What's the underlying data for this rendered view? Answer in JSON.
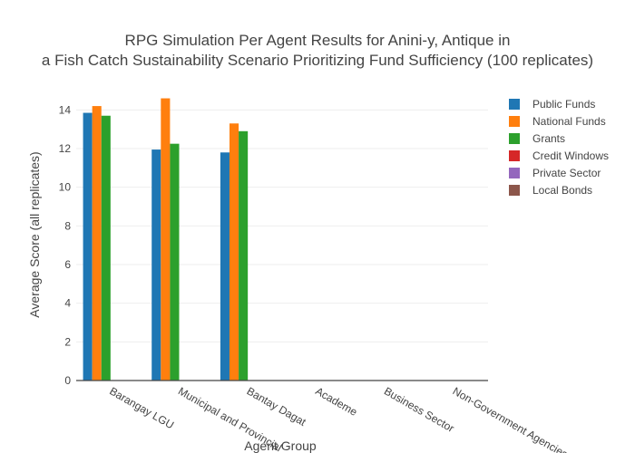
{
  "chart_data": {
    "type": "bar",
    "title_lines": [
      "RPG Simulation Per Agent Results for Anini-y, Antique in",
      "a Fish Catch Sustainability Scenario Prioritizing Fund Sufficiency (100 replicates)"
    ],
    "xlabel": "Agent Group",
    "ylabel": "Average Score (all replicates)",
    "ylim": [
      0,
      15
    ],
    "yticks": [
      0,
      2,
      4,
      6,
      8,
      10,
      12,
      14
    ],
    "grid": true,
    "legend_position": "right",
    "categories": [
      "Barangay LGU",
      "Municipal and Provincial",
      "Bantay Dagat",
      "Academe",
      "Business Sector",
      "Non-Government Agencies"
    ],
    "series": [
      {
        "name": "Public Funds",
        "color": "#1f77b4",
        "values": [
          13.85,
          11.95,
          11.8,
          null,
          null,
          null
        ]
      },
      {
        "name": "National Funds",
        "color": "#ff7f0e",
        "values": [
          14.2,
          14.6,
          13.3,
          null,
          null,
          null
        ]
      },
      {
        "name": "Grants",
        "color": "#2ca02c",
        "values": [
          13.7,
          12.25,
          12.9,
          null,
          null,
          null
        ]
      },
      {
        "name": "Credit Windows",
        "color": "#d62728",
        "values": [
          null,
          null,
          null,
          null,
          null,
          null
        ]
      },
      {
        "name": "Private Sector",
        "color": "#9467bd",
        "values": [
          null,
          null,
          null,
          null,
          null,
          null
        ]
      },
      {
        "name": "Local Bonds",
        "color": "#8c564b",
        "values": [
          null,
          null,
          null,
          null,
          null,
          null
        ]
      }
    ]
  }
}
